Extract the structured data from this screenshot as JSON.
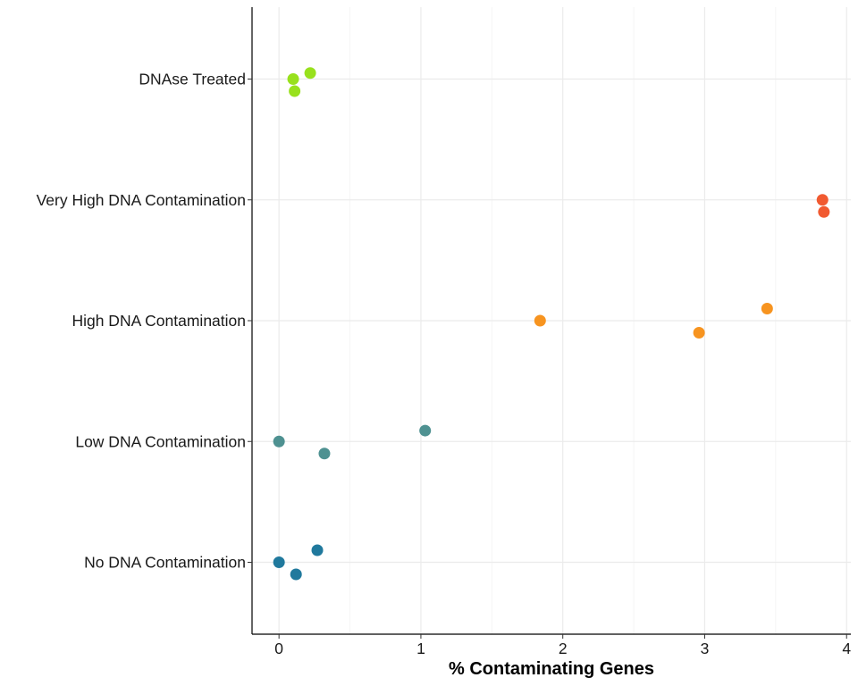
{
  "chart_data": {
    "type": "scatter",
    "title": "",
    "xlabel": "% Contaminating Genes",
    "ylabel": "",
    "xlim": [
      -0.19,
      4.03
    ],
    "xticks": [
      0,
      1,
      2,
      3,
      4
    ],
    "grid": true,
    "legend": "none",
    "categories": [
      "No DNA Contamination",
      "Low DNA Contamination",
      "High DNA Contamination",
      "Very High DNA Contamination",
      "DNAse Treated"
    ],
    "series": [
      {
        "category": "No DNA Contamination",
        "color": "#20799d",
        "points": [
          {
            "x": 0.0,
            "y_jitter": 0.0
          },
          {
            "x": 0.27,
            "y_jitter": 0.1
          },
          {
            "x": 0.12,
            "y_jitter": -0.1
          }
        ]
      },
      {
        "category": "Low DNA Contamination",
        "color": "#4e9191",
        "points": [
          {
            "x": 0.0,
            "y_jitter": 0.0
          },
          {
            "x": 1.03,
            "y_jitter": 0.09
          },
          {
            "x": 0.32,
            "y_jitter": -0.1
          }
        ]
      },
      {
        "category": "High DNA Contamination",
        "color": "#f79420",
        "points": [
          {
            "x": 1.84,
            "y_jitter": 0.0
          },
          {
            "x": 3.44,
            "y_jitter": 0.1
          },
          {
            "x": 2.96,
            "y_jitter": -0.1
          }
        ]
      },
      {
        "category": "Very High DNA Contamination",
        "color": "#f15a31",
        "points": [
          {
            "x": 3.83,
            "y_jitter": 0.0
          },
          {
            "x": 3.84,
            "y_jitter": -0.1
          }
        ]
      },
      {
        "category": "DNAse Treated",
        "color": "#98e11d",
        "points": [
          {
            "x": 0.22,
            "y_jitter": 0.05
          },
          {
            "x": 0.1,
            "y_jitter": 0.0
          },
          {
            "x": 0.11,
            "y_jitter": -0.1
          }
        ]
      }
    ]
  }
}
